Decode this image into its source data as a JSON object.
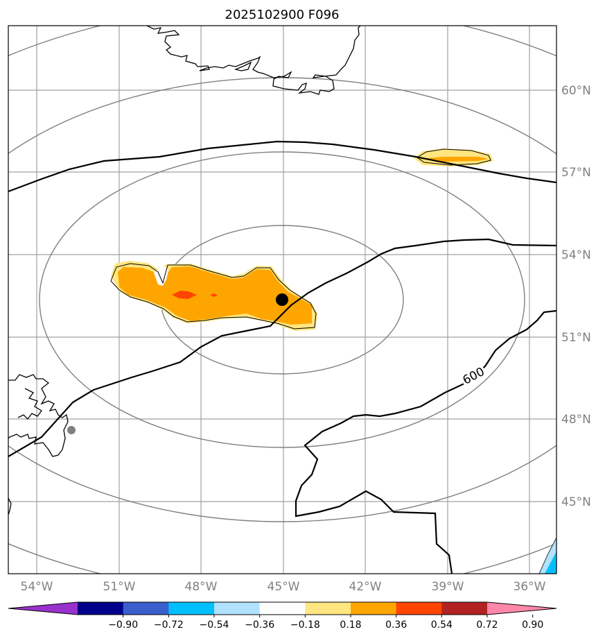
{
  "title": "2025102900 F096",
  "map": {
    "lat_labels": [
      "60°N",
      "57°N",
      "54°N",
      "51°N",
      "48°N",
      "45°N"
    ],
    "lon_labels": [
      "54°W",
      "51°W",
      "48°W",
      "45°W",
      "42°W",
      "39°W",
      "36°W"
    ],
    "contour_label": "600",
    "center_marker": {
      "lon": "45°W",
      "lat": "52.3°N",
      "color": "#000000"
    },
    "station_marker_color": "#808080",
    "coastline_color": "#000000",
    "gridline_color": "#a0a0a0",
    "range_ring_color": "#808080",
    "shading": [
      {
        "name": "main-anomaly",
        "levels": [
          "0.18-0.36",
          "0.36-0.54",
          "0.54-0.72"
        ]
      },
      {
        "name": "northeast-anomaly",
        "levels": [
          "0.18-0.36",
          "0.36-0.54"
        ]
      },
      {
        "name": "southeast-corner-anomaly",
        "levels": [
          "-0.36--0.18",
          "-0.54--0.36"
        ]
      }
    ]
  },
  "colorbar": {
    "ticks": [
      "−0.90",
      "−0.72",
      "−0.54",
      "−0.36",
      "−0.18",
      "0.18",
      "0.36",
      "0.54",
      "0.72",
      "0.90"
    ],
    "colors": [
      "#9932cc",
      "#00008b",
      "#3a5fcd",
      "#00bfff",
      "#b0e2ff",
      "#ffffff",
      "#ffe680",
      "#ffa500",
      "#ff4500",
      "#b22222",
      "#ff88aa"
    ]
  }
}
